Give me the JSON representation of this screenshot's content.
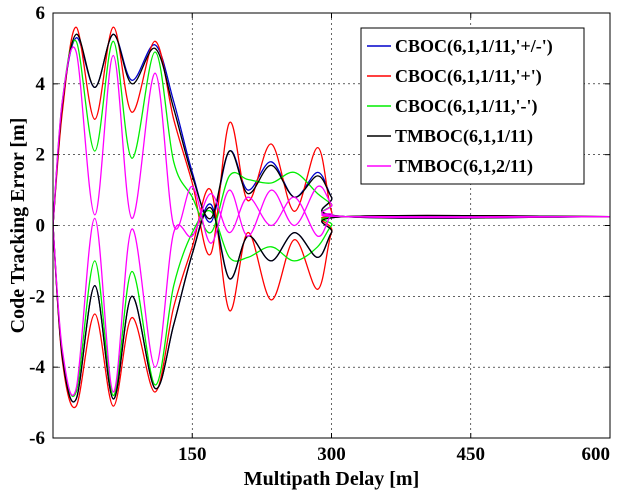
{
  "chart_data": {
    "type": "line",
    "xlabel": "Multipath Delay [m]",
    "ylabel": "Code Tracking Error [m]",
    "xlim": [
      0,
      600
    ],
    "ylim": [
      -6,
      6
    ],
    "x_ticks": [
      150,
      300,
      450,
      600
    ],
    "x_tick_labels": [
      "150",
      "300",
      "450",
      "600"
    ],
    "y_ticks": [
      -6,
      -4,
      -2,
      0,
      2,
      4,
      6
    ],
    "y_tick_labels": [
      "-6",
      "-4",
      "-2",
      "0",
      "2",
      "4",
      "6"
    ],
    "grid": true,
    "legend_position": "top-right",
    "steady_state_value": 0.25,
    "series": [
      {
        "name": "CBOC(6,1,1/11,'+/-')",
        "color": "#0000cc",
        "upper": {
          "x": [
            0,
            10,
            25,
            45,
            65,
            85,
            110,
            130,
            150,
            170,
            190,
            210,
            235,
            260,
            285,
            300,
            315,
            600
          ],
          "y": [
            0,
            3.4,
            5.3,
            3.9,
            5.4,
            4.1,
            5.1,
            3.5,
            1.5,
            0.1,
            2.1,
            1.0,
            1.8,
            0.8,
            1.5,
            0.8,
            0.25,
            0.25
          ]
        },
        "lower": {
          "x": [
            0,
            10,
            25,
            45,
            65,
            85,
            110,
            130,
            150,
            170,
            190,
            210,
            235,
            260,
            285,
            300,
            315,
            600
          ],
          "y": [
            0,
            -3.7,
            -4.9,
            -1.7,
            -4.9,
            -2.0,
            -4.6,
            -2.8,
            -0.8,
            0.6,
            -1.5,
            -0.3,
            -1.0,
            -0.2,
            -0.9,
            -0.2,
            0.25,
            0.25
          ]
        }
      },
      {
        "name": "CBOC(6,1,1/11,'+')",
        "color": "#ff0000",
        "upper": {
          "x": [
            0,
            10,
            25,
            45,
            65,
            85,
            110,
            130,
            150,
            170,
            190,
            210,
            235,
            260,
            285,
            300,
            315,
            600
          ],
          "y": [
            0,
            3.2,
            5.6,
            3.0,
            5.6,
            3.2,
            5.2,
            3.0,
            1.2,
            -0.8,
            2.9,
            0.7,
            2.3,
            0.4,
            2.2,
            0.4,
            0.25,
            0.25
          ]
        },
        "lower": {
          "x": [
            0,
            10,
            25,
            45,
            65,
            85,
            110,
            130,
            150,
            170,
            190,
            210,
            235,
            260,
            285,
            300,
            315,
            600
          ],
          "y": [
            0,
            -3.8,
            -5.1,
            -2.5,
            -5.1,
            -2.6,
            -4.7,
            -2.3,
            -0.6,
            1.0,
            -2.4,
            -0.2,
            -2.1,
            -0.4,
            -1.8,
            -0.2,
            0.25,
            0.25
          ]
        }
      },
      {
        "name": "CBOC(6,1,1/11,'-')",
        "color": "#00ee00",
        "upper": {
          "x": [
            0,
            10,
            25,
            45,
            65,
            85,
            110,
            130,
            150,
            170,
            190,
            210,
            235,
            260,
            285,
            300,
            315,
            600
          ],
          "y": [
            0,
            3.5,
            5.2,
            2.1,
            5.2,
            1.9,
            4.9,
            1.8,
            0.8,
            -0.2,
            1.4,
            1.3,
            1.2,
            1.5,
            0.9,
            0.6,
            0.25,
            0.25
          ]
        },
        "lower": {
          "x": [
            0,
            10,
            25,
            45,
            65,
            85,
            110,
            130,
            150,
            170,
            190,
            210,
            235,
            260,
            285,
            300,
            315,
            600
          ],
          "y": [
            0,
            -3.6,
            -4.7,
            -1.0,
            -4.8,
            -1.3,
            -4.5,
            -1.7,
            -0.2,
            0.4,
            -0.9,
            -0.9,
            -0.6,
            -1.0,
            -0.6,
            0.0,
            0.25,
            0.25
          ]
        }
      },
      {
        "name": "TMBOC(6,1,1/11)",
        "color": "#000000",
        "upper": {
          "x": [
            0,
            10,
            25,
            45,
            65,
            85,
            110,
            130,
            150,
            170,
            190,
            210,
            235,
            260,
            285,
            300,
            315,
            600
          ],
          "y": [
            0,
            3.4,
            5.4,
            3.9,
            5.4,
            4.0,
            5.0,
            3.3,
            1.4,
            0.2,
            2.1,
            0.9,
            1.7,
            0.8,
            1.4,
            0.8,
            0.25,
            0.25
          ]
        },
        "lower": {
          "x": [
            0,
            10,
            25,
            45,
            65,
            85,
            110,
            130,
            150,
            170,
            190,
            210,
            235,
            260,
            285,
            300,
            315,
            600
          ],
          "y": [
            0,
            -3.7,
            -4.9,
            -1.7,
            -4.9,
            -2.0,
            -4.6,
            -2.8,
            -0.8,
            0.5,
            -1.5,
            -0.3,
            -1.0,
            -0.2,
            -0.9,
            -0.2,
            0.25,
            0.25
          ]
        }
      },
      {
        "name": "TMBOC(6,1,2/11)",
        "color": "#ff00ff",
        "upper": {
          "x": [
            0,
            10,
            25,
            45,
            65,
            85,
            110,
            130,
            150,
            170,
            190,
            210,
            235,
            260,
            285,
            300,
            315,
            600
          ],
          "y": [
            0,
            3.5,
            4.9,
            0.3,
            4.8,
            0.2,
            4.3,
            0.0,
            1.1,
            -0.5,
            1.0,
            -0.3,
            1.0,
            0.0,
            1.1,
            0.6,
            0.25,
            0.25
          ]
        },
        "lower": {
          "x": [
            0,
            10,
            25,
            45,
            65,
            85,
            110,
            130,
            150,
            170,
            190,
            210,
            235,
            260,
            285,
            300,
            315,
            600
          ],
          "y": [
            0,
            -3.5,
            -4.6,
            0.2,
            -4.7,
            -0.1,
            -4.0,
            -0.2,
            -0.3,
            0.9,
            -0.2,
            0.8,
            0.0,
            0.8,
            -0.3,
            0.3,
            0.25,
            0.25
          ]
        }
      }
    ]
  }
}
